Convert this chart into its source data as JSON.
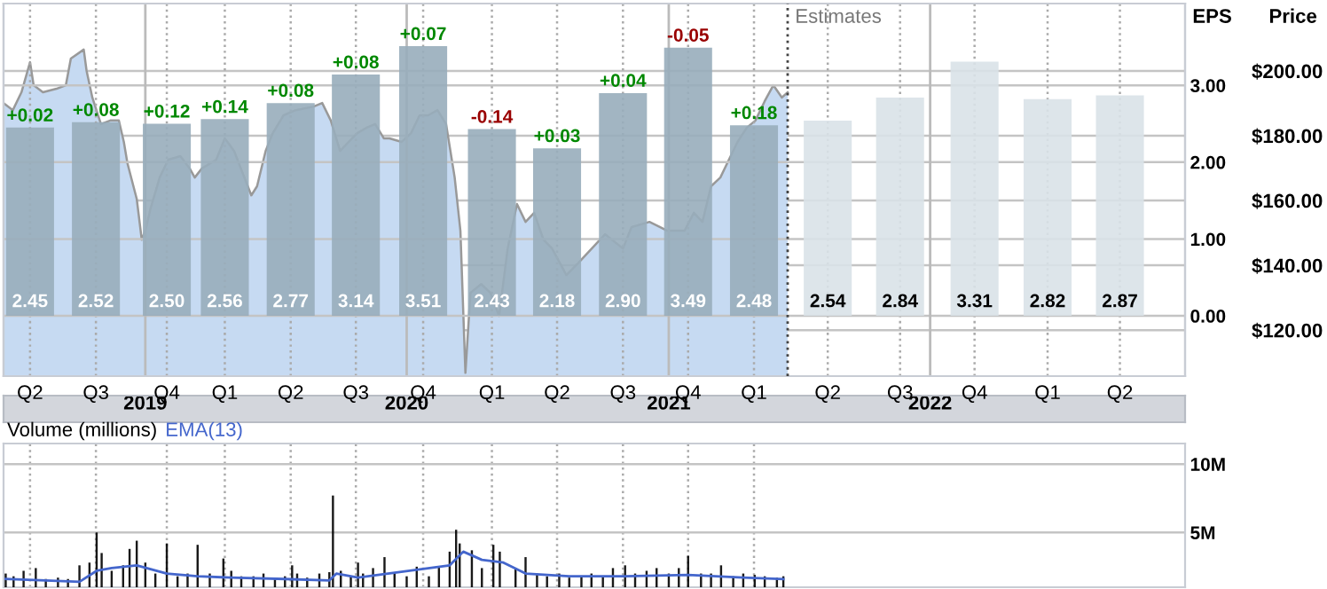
{
  "chart_data": [
    {
      "type": "bar",
      "ylabel": "EPS",
      "y2label": "Price",
      "series": [
        {
          "type": "area",
          "axis": "y2",
          "color": "#c6daf2",
          "x": [
            "2018-06-17",
            "2018-06-30",
            "2018-07-12",
            "2018-07-24",
            "2018-07-29",
            "2018-08-11",
            "2018-08-30",
            "2018-09-12",
            "2018-09-19",
            "2018-10-07",
            "2018-10-11",
            "2018-10-19",
            "2018-10-31",
            "2018-11-13",
            "2018-11-25",
            "2018-12-02",
            "2018-12-07",
            "2018-12-20",
            "2018-12-27",
            "2019-01-01",
            "2019-01-08",
            "2019-01-21",
            "2019-02-02",
            "2019-02-19",
            "2019-03-04",
            "2019-03-11",
            "2019-03-21",
            "2019-04-10",
            "2019-04-22",
            "2019-05-05",
            "2019-05-29",
            "2019-06-06",
            "2019-06-18",
            "2019-06-28",
            "2019-07-13",
            "2019-07-30",
            "2019-08-24",
            "2019-09-05",
            "2019-09-17",
            "2019-09-30",
            "2019-10-12",
            "2019-10-24",
            "2019-11-06",
            "2019-11-18",
            "2019-11-30",
            "2019-12-08",
            "2019-12-25",
            "2020-01-07",
            "2020-01-19",
            "2020-01-31",
            "2020-02-13",
            "2020-02-25",
            "2020-03-08",
            "2020-03-16",
            "2020-03-23",
            "2020-03-30",
            "2020-04-14",
            "2020-04-27",
            "2020-05-09",
            "2020-05-21",
            "2020-06-03",
            "2020-06-15",
            "2020-06-27",
            "2020-07-10",
            "2020-07-22",
            "2020-08-11",
            "2020-08-28",
            "2020-10-04",
            "2020-10-29",
            "2020-11-10",
            "2020-12-05",
            "2020-12-30",
            "2021-01-23",
            "2021-02-05",
            "2021-02-17",
            "2021-03-01",
            "2021-03-14",
            "2021-03-26",
            "2021-04-07",
            "2021-04-20",
            "2021-05-02",
            "2021-05-15",
            "2021-05-27",
            "2021-06-08",
            "2021-06-16"
          ],
          "values": [
            190.1,
            187.9,
            193.4,
            202.7,
            195.6,
            193.4,
            194.5,
            195.6,
            203.8,
            206.6,
            200,
            191.8,
            183.6,
            184.7,
            184.7,
            178.1,
            171.5,
            160.5,
            147.9,
            150.7,
            157.3,
            167.1,
            172.6,
            173.7,
            169.9,
            167.1,
            169.9,
            172.6,
            179.2,
            175.3,
            161.6,
            164.4,
            175.3,
            180.8,
            186.3,
            187.9,
            189,
            190.1,
            184.7,
            175.3,
            178.1,
            180.8,
            182.5,
            183.6,
            179.2,
            179.2,
            178.1,
            180.8,
            186.3,
            186.3,
            187.9,
            183.6,
            167.1,
            150.7,
            106.8,
            131.5,
            134.2,
            131.5,
            124.4,
            145.2,
            158.9,
            153.4,
            156.2,
            147.9,
            145.2,
            137,
            140.8,
            149.6,
            145.2,
            151.8,
            153.4,
            150.7,
            150.7,
            156.2,
            153.4,
            164.4,
            167.1,
            172.6,
            178.1,
            182.5,
            184.7,
            190.7,
            195.6,
            191.8,
            193.4
          ]
        },
        {
          "x": [
            "2018-07-24",
            "2018-10-24",
            "2019-01-31",
            "2019-04-22",
            "2019-07-23",
            "2019-10-22",
            "2020-01-24",
            "2020-04-29",
            "2020-07-29",
            "2020-10-29",
            "2021-01-28",
            "2021-04-30",
            "2021-08-11",
            "2021-11-20",
            "2022-03-04",
            "2022-06-14",
            "2022-09-23"
          ],
          "values": [
            2.45,
            2.52,
            2.5,
            2.56,
            2.77,
            3.14,
            3.51,
            2.43,
            2.18,
            2.9,
            3.49,
            2.48,
            2.54,
            2.84,
            3.31,
            2.82,
            2.87
          ],
          "value_labels": [
            "2.45",
            "2.52",
            "2.50",
            "2.56",
            "2.77",
            "3.14",
            "3.51",
            "2.43",
            "2.18",
            "2.90",
            "3.49",
            "2.48",
            "2.54",
            "2.84",
            "3.31",
            "2.82",
            "2.87"
          ],
          "colors": [
            "#98adbb",
            "#98adbb",
            "#98adbb",
            "#98adbb",
            "#98adbb",
            "#98adbb",
            "#98adbb",
            "#98adbb",
            "#98adbb",
            "#98adbb",
            "#98adbb",
            "#98adbb",
            "#d9e2e8",
            "#d9e2e8",
            "#d9e2e8",
            "#d9e2e8",
            "#d9e2e8"
          ]
        }
      ],
      "xlim": [
        "2018-06-17",
        "2022-12-23"
      ],
      "xticks": [
        {
          "value": "2018-07-24",
          "label": "Q2"
        },
        {
          "value": "2018-10-24",
          "label": "Q3"
        },
        {
          "value": "2019-01-31",
          "label": "Q4"
        },
        {
          "value": "2019-04-22",
          "label": "Q1"
        },
        {
          "value": "2019-07-23",
          "label": "Q2"
        },
        {
          "value": "2019-10-22",
          "label": "Q3"
        },
        {
          "value": "2020-01-24",
          "label": "Q4"
        },
        {
          "value": "2020-04-29",
          "label": "Q1"
        },
        {
          "value": "2020-07-29",
          "label": "Q2"
        },
        {
          "value": "2020-10-29",
          "label": "Q3"
        },
        {
          "value": "2021-01-28",
          "label": "Q4"
        },
        {
          "value": "2021-04-30",
          "label": "Q1"
        },
        {
          "value": "2021-08-11",
          "label": "Q2"
        },
        {
          "value": "2021-11-20",
          "label": "Q3"
        },
        {
          "value": "2022-03-04",
          "label": "Q4"
        },
        {
          "value": "2022-06-14",
          "label": "Q1"
        },
        {
          "value": "2022-09-23",
          "label": "Q2"
        }
      ],
      "ylim": [
        -0.785,
        4.065
      ],
      "yticks": [
        {
          "value": 0,
          "label": "0.00"
        },
        {
          "value": 1,
          "label": "1.00"
        },
        {
          "value": 2,
          "label": "2.00"
        },
        {
          "value": 3,
          "label": "3.00"
        }
      ],
      "y2lim": [
        105.8,
        220.8
      ],
      "y2ticks": [
        {
          "value": 120,
          "label": "$120.00"
        },
        {
          "value": 140,
          "label": "$140.00"
        },
        {
          "value": 160,
          "label": "$160.00"
        },
        {
          "value": 180,
          "label": "$180.00"
        },
        {
          "value": 200,
          "label": "$200.00"
        }
      ],
      "ref_lines": [
        {
          "axis": "x",
          "value": "2021-06-16",
          "label": "Estimates",
          "line_style": "dotted",
          "color": "#444444"
        }
      ],
      "annotations": [
        {
          "text": "+0.02",
          "x": "2018-07-24",
          "y": 2.45
        },
        {
          "text": "+0.08",
          "x": "2018-10-24",
          "y": 2.52
        },
        {
          "text": "+0.12",
          "x": "2019-01-31",
          "y": 2.5
        },
        {
          "text": "+0.14",
          "x": "2019-04-22",
          "y": 2.56
        },
        {
          "text": "+0.08",
          "x": "2019-07-23",
          "y": 2.77
        },
        {
          "text": "+0.08",
          "x": "2019-10-22",
          "y": 3.14
        },
        {
          "text": "+0.07",
          "x": "2020-01-24",
          "y": 3.51
        },
        {
          "text": "-0.14",
          "x": "2020-04-29",
          "y": 2.43
        },
        {
          "text": "+0.03",
          "x": "2020-07-29",
          "y": 2.18
        },
        {
          "text": "+0.04",
          "x": "2020-10-29",
          "y": 2.9
        },
        {
          "text": "-0.05",
          "x": "2021-01-28",
          "y": 3.49
        },
        {
          "text": "+0.18",
          "x": "2021-04-30",
          "y": 2.48
        }
      ],
      "x2lim": [
        "2018-06-17",
        "2022-12-23"
      ],
      "x2ticks": [
        {
          "value": "2019-01-01",
          "label": "2019"
        },
        {
          "value": "2020-01-01",
          "label": "2020"
        },
        {
          "value": "2021-01-01",
          "label": "2021"
        },
        {
          "value": "2022-01-01",
          "label": "2022"
        }
      ],
      "grid": true,
      "legend": false
    },
    {
      "type": "bar",
      "title": "Volume (millions)",
      "series": [
        {
          "color": "#000000",
          "x": [
            "2018-06-20",
            "2018-07-01",
            "2018-07-15",
            "2018-08-01",
            "2018-08-15",
            "2018-09-01",
            "2018-09-15",
            "2018-10-01",
            "2018-10-15",
            "2018-10-25",
            "2018-11-01",
            "2018-11-15",
            "2018-12-01",
            "2018-12-10",
            "2018-12-20",
            "2019-01-01",
            "2019-01-15",
            "2019-01-31",
            "2019-02-15",
            "2019-03-01",
            "2019-03-15",
            "2019-04-01",
            "2019-04-20",
            "2019-05-01",
            "2019-05-15",
            "2019-06-01",
            "2019-06-15",
            "2019-07-01",
            "2019-07-15",
            "2019-07-25",
            "2019-08-01",
            "2019-08-15",
            "2019-09-01",
            "2019-09-15",
            "2019-09-20",
            "2019-10-01",
            "2019-10-15",
            "2019-10-25",
            "2019-11-01",
            "2019-11-15",
            "2019-12-01",
            "2019-12-15",
            "2020-01-01",
            "2020-01-15",
            "2020-02-01",
            "2020-02-15",
            "2020-03-01",
            "2020-03-10",
            "2020-03-15",
            "2020-04-01",
            "2020-04-15",
            "2020-05-01",
            "2020-05-10",
            "2020-06-01",
            "2020-06-15",
            "2020-07-01",
            "2020-07-15",
            "2020-08-01",
            "2020-08-15",
            "2020-09-01",
            "2020-09-15",
            "2020-10-01",
            "2020-10-15",
            "2020-11-01",
            "2020-11-15",
            "2020-12-01",
            "2020-12-15",
            "2021-01-01",
            "2021-01-15",
            "2021-01-28",
            "2021-02-15",
            "2021-03-01",
            "2021-03-15",
            "2021-04-01",
            "2021-04-15",
            "2021-05-01",
            "2021-05-15",
            "2021-06-01",
            "2021-06-10"
          ],
          "values": [
            2.0,
            1.8,
            2.2,
            2.4,
            1.6,
            1.7,
            1.6,
            2.6,
            2.8,
            5.0,
            3.5,
            2.2,
            2.6,
            3.8,
            4.4,
            2.8,
            2.0,
            4.2,
            1.8,
            2.0,
            4.1,
            2.0,
            3.1,
            2.2,
            1.8,
            1.8,
            2.0,
            1.6,
            1.8,
            2.6,
            2.0,
            1.7,
            2.0,
            2.1,
            7.7,
            2.2,
            1.8,
            2.8,
            2.0,
            2.4,
            3.2,
            2.1,
            1.8,
            2.5,
            1.8,
            2.5,
            3.6,
            5.2,
            4.2,
            3.7,
            2.4,
            4.1,
            3.6,
            2.4,
            3.2,
            2.0,
            1.8,
            2.0,
            1.7,
            1.8,
            2.0,
            1.8,
            2.4,
            2.6,
            2.0,
            2.2,
            2.4,
            2.0,
            2.4,
            3.3,
            2.0,
            2.0,
            2.6,
            1.8,
            2.0,
            1.9,
            1.8,
            1.7,
            1.8
          ]
        },
        {
          "type": "line",
          "name": "EMA(13)",
          "color": "#4466cc",
          "x": [
            "2018-06-20",
            "2018-08-15",
            "2018-10-01",
            "2018-10-25",
            "2018-11-15",
            "2018-12-20",
            "2019-01-31",
            "2019-03-15",
            "2019-05-01",
            "2019-07-15",
            "2019-09-15",
            "2019-09-25",
            "2019-10-25",
            "2020-03-01",
            "2020-03-20",
            "2020-04-15",
            "2020-05-15",
            "2020-06-15",
            "2020-08-15",
            "2020-11-01",
            "2021-01-28",
            "2021-04-15",
            "2021-06-10"
          ],
          "values": [
            1.6,
            1.5,
            1.4,
            2.2,
            2.4,
            2.6,
            2.0,
            1.8,
            1.7,
            1.6,
            1.5,
            2.0,
            1.7,
            2.6,
            3.6,
            3.0,
            2.8,
            2.0,
            1.8,
            1.8,
            1.9,
            1.7,
            1.6
          ]
        }
      ],
      "xlim": [
        "2018-06-17",
        "2022-12-23"
      ],
      "xticks": [
        {
          "value": "2018-07-24",
          "label": null
        },
        {
          "value": "2018-10-24",
          "label": null
        },
        {
          "value": "2019-01-31",
          "label": null
        },
        {
          "value": "2019-04-22",
          "label": null
        },
        {
          "value": "2019-07-23",
          "label": null
        },
        {
          "value": "2019-10-22",
          "label": null
        },
        {
          "value": "2020-01-24",
          "label": null
        },
        {
          "value": "2020-04-29",
          "label": null
        },
        {
          "value": "2020-07-29",
          "label": null
        },
        {
          "value": "2020-10-29",
          "label": null
        },
        {
          "value": "2021-01-28",
          "label": null
        },
        {
          "value": "2021-04-30",
          "label": null
        }
      ],
      "ylim": [
        1.0,
        11.5
      ],
      "yticks": [
        {
          "value": 5,
          "label": "5M"
        },
        {
          "value": 10,
          "label": "10M"
        }
      ],
      "tick_labels": "y",
      "grid": true,
      "legend": false
    }
  ]
}
